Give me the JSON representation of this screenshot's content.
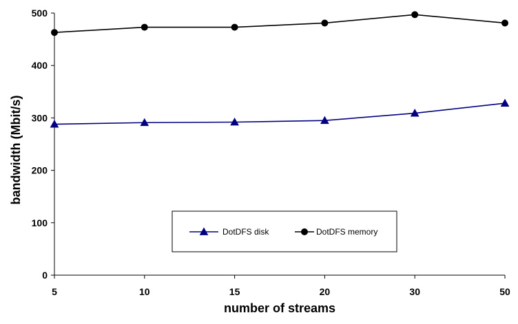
{
  "chart_data": {
    "type": "line",
    "categories": [
      "5",
      "10",
      "15",
      "20",
      "30",
      "50"
    ],
    "series": [
      {
        "name": "DotDFS disk",
        "values": [
          288,
          291,
          292,
          295,
          309,
          328
        ],
        "color": "#000080",
        "marker": "triangle"
      },
      {
        "name": "DotDFS memory",
        "values": [
          463,
          473,
          473,
          481,
          497,
          481
        ],
        "color": "#000000",
        "marker": "circle"
      }
    ],
    "xlabel": "number of streams",
    "ylabel": "bandwidth (Mbit/s)",
    "ylim": [
      0,
      500
    ],
    "yticks": [
      "0",
      "100",
      "200",
      "300",
      "400",
      "500"
    ],
    "grid": false,
    "legend_position": "bottom-center"
  }
}
